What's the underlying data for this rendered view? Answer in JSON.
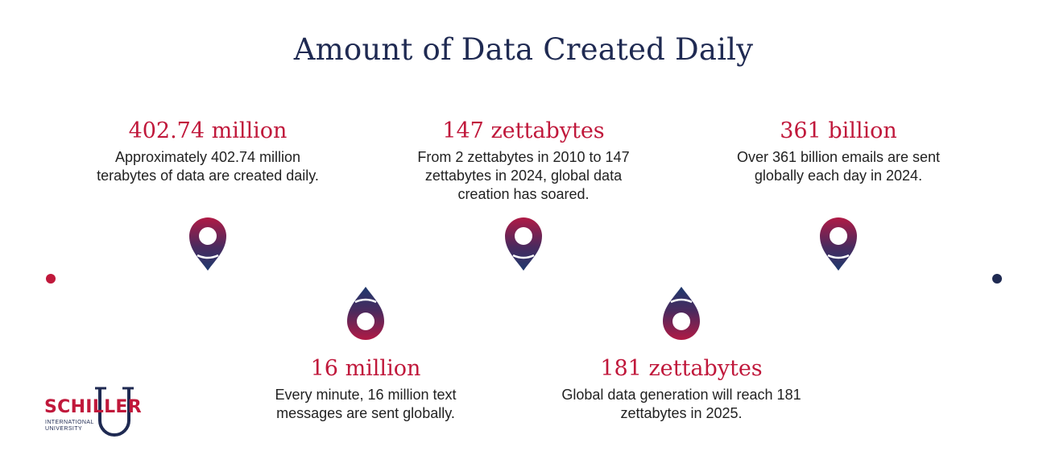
{
  "title": "Amount of Data Created Daily",
  "colors": {
    "accent": "#c0183b",
    "navy": "#1f2a52",
    "purple": "#5a2a5e"
  },
  "milestones": [
    {
      "heading": "402.74 million",
      "description": "Approximately 402.74 million terabytes of data are created daily."
    },
    {
      "heading": "16 million",
      "description": "Every minute, 16 million text messages are sent globally."
    },
    {
      "heading": "147 zettabytes",
      "description": "From 2 zettabytes in 2010 to 147 zettabytes in 2024, global data creation has soared."
    },
    {
      "heading": "181 zettabytes",
      "description": "Global data generation will reach 181 zettabytes in 2025."
    },
    {
      "heading": "361 billion",
      "description": "Over 361 billion emails are sent globally each day in 2024."
    }
  ],
  "icons": [
    "map-pin-icon"
  ],
  "logo": {
    "name": "SCHILLER",
    "sub_line1": "INTERNATIONAL",
    "sub_line2": "UNIVERSITY",
    "letter": "U"
  }
}
